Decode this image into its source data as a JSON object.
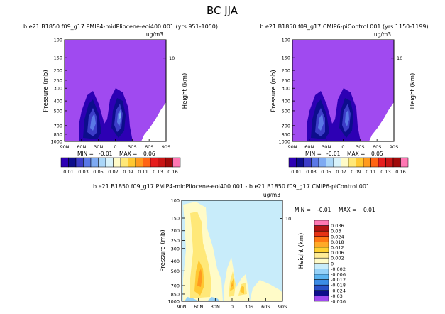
{
  "title": "BC  JJA",
  "colors": {
    "purple": "#a04af0",
    "levels": [
      "#2d00b4",
      "#0d0d8c",
      "#3c3cc8",
      "#5a78e6",
      "#7eaaf2",
      "#aad6f8",
      "#d8f2fa",
      "#fffbc8",
      "#ffe878",
      "#ffc832",
      "#ff9a1e",
      "#ff6414",
      "#e61e1e",
      "#c81414",
      "#a00a0a",
      "#ff78b4"
    ],
    "diff_levels": [
      "#a04af0",
      "#0d0d8c",
      "#2850c8",
      "#3c8ce6",
      "#5ab4f0",
      "#96d2f8",
      "#c8ecfa",
      "#fffbc8",
      "#ffec96",
      "#ffd232",
      "#ffaa28",
      "#ff7814",
      "#e63214",
      "#b41414",
      "#ff78b4"
    ]
  },
  "chart_data": [
    {
      "type": "heatmap",
      "id": "left",
      "title": "b.e21.B1850.f09_g17.PMIP4-midPliocene-eoi400.001 (yrs 951-1050)",
      "units": "ug/m3",
      "ylabel": "Pressure (mb)",
      "y2label": "Height (km)",
      "xticks": [
        "90N",
        "60N",
        "30N",
        "0",
        "30S",
        "60S",
        "90S"
      ],
      "yticks": [
        "100",
        "150",
        "200",
        "250",
        "300",
        "400",
        "500",
        "700",
        "850",
        "1000"
      ],
      "y2ticks": [
        "10"
      ],
      "min": "-0.01",
      "max": "0.06",
      "colorbar_labels": [
        "0.01",
        "0.03",
        "0.05",
        "0.07",
        "0.09",
        "0.11",
        "0.13",
        "0.16"
      ]
    },
    {
      "type": "heatmap",
      "id": "right",
      "title": "b.e21.B1850.f09_g17.CMIP6-piControl.001 (yrs 1150-1199)",
      "units": "ug/m3",
      "ylabel": "Pressure (mb)",
      "y2label": "Height (km)",
      "xticks": [
        "90N",
        "60N",
        "30N",
        "0",
        "30S",
        "60S",
        "90S"
      ],
      "yticks": [
        "100",
        "150",
        "200",
        "250",
        "300",
        "400",
        "500",
        "700",
        "850",
        "1000"
      ],
      "y2ticks": [
        "10"
      ],
      "min": "-0.01",
      "max": "0.05",
      "colorbar_labels": [
        "0.01",
        "0.03",
        "0.05",
        "0.07",
        "0.09",
        "0.11",
        "0.13",
        "0.16"
      ]
    },
    {
      "type": "heatmap",
      "id": "diff",
      "title": "b.e21.B1850.f09_g17.PMIP4-midPliocene-eoi400.001 - b.e21.B1850.f09_g17.CMIP6-piControl.001",
      "units": "ug/m3",
      "ylabel": "Pressure (mb)",
      "y2label": "Height (km)",
      "xticks": [
        "90N",
        "60N",
        "30N",
        "0",
        "30S",
        "60S",
        "90S"
      ],
      "yticks": [
        "100",
        "150",
        "200",
        "250",
        "300",
        "400",
        "500",
        "700",
        "850",
        "1000"
      ],
      "y2ticks": [
        "10"
      ],
      "min": "-0.01",
      "max": "0.01",
      "colorbar_labels": [
        "0.036",
        "0.03",
        "0.024",
        "0.018",
        "0.012",
        "0.006",
        "0.002",
        "0",
        "-0.002",
        "-0.006",
        "-0.012",
        "-0.018",
        "-0.024",
        "-0.03",
        "-0.036"
      ]
    }
  ]
}
